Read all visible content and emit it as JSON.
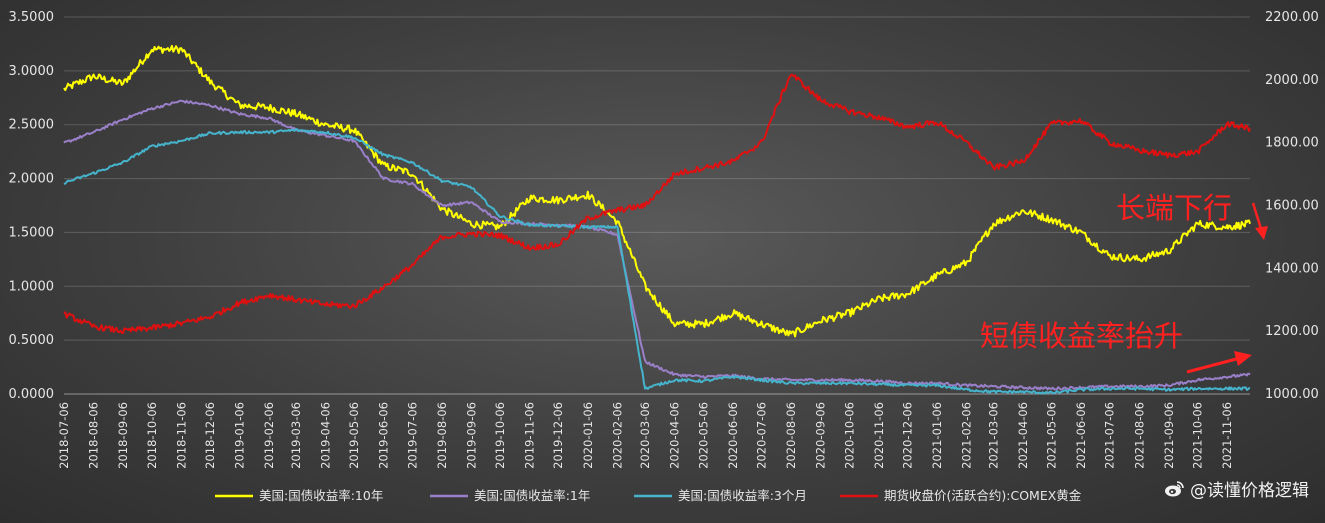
{
  "chart_data": {
    "type": "line",
    "x_start": "2018-07-06",
    "x_end": "2021-11-30",
    "xticks": [
      "2018-07-06",
      "2018-08-06",
      "2018-09-06",
      "2018-10-06",
      "2018-11-06",
      "2018-12-06",
      "2019-01-06",
      "2019-02-06",
      "2019-03-06",
      "2019-04-06",
      "2019-05-06",
      "2019-06-06",
      "2019-07-06",
      "2019-08-06",
      "2019-09-06",
      "2019-10-06",
      "2019-11-06",
      "2019-12-06",
      "2020-01-06",
      "2020-02-06",
      "2020-03-06",
      "2020-04-06",
      "2020-05-06",
      "2020-06-06",
      "2020-07-06",
      "2020-08-06",
      "2020-09-06",
      "2020-10-06",
      "2020-11-06",
      "2020-12-06",
      "2021-01-06",
      "2021-02-06",
      "2021-03-06",
      "2021-04-06",
      "2021-05-06",
      "2021-06-06",
      "2021-07-06",
      "2021-08-06",
      "2021-09-06",
      "2021-10-06",
      "2021-11-06"
    ],
    "y_left": {
      "min": 0,
      "max": 3.5,
      "step": 0.5,
      "ticks": [
        "0.0000",
        "0.5000",
        "1.0000",
        "1.5000",
        "2.0000",
        "2.5000",
        "3.0000",
        "3.5000"
      ]
    },
    "y_right": {
      "min": 1000,
      "max": 2200,
      "step": 200,
      "ticks": [
        "1000.00",
        "1200.00",
        "1400.00",
        "1600.00",
        "1800.00",
        "2000.00",
        "2200.00"
      ]
    },
    "grid": true,
    "legend_position": "bottom",
    "series": [
      {
        "name": "美国:国债收益率:10年",
        "color": "#ffff00",
        "axis": "left",
        "points": [
          [
            "2018-07-06",
            2.83
          ],
          [
            "2018-08-06",
            2.95
          ],
          [
            "2018-09-06",
            2.88
          ],
          [
            "2018-10-06",
            3.2
          ],
          [
            "2018-11-06",
            3.2
          ],
          [
            "2018-12-06",
            2.9
          ],
          [
            "2019-01-06",
            2.68
          ],
          [
            "2019-02-06",
            2.66
          ],
          [
            "2019-03-06",
            2.6
          ],
          [
            "2019-04-06",
            2.5
          ],
          [
            "2019-05-06",
            2.45
          ],
          [
            "2019-06-06",
            2.12
          ],
          [
            "2019-07-06",
            2.05
          ],
          [
            "2019-08-06",
            1.72
          ],
          [
            "2019-09-06",
            1.58
          ],
          [
            "2019-10-06",
            1.55
          ],
          [
            "2019-11-06",
            1.82
          ],
          [
            "2019-12-06",
            1.8
          ],
          [
            "2020-01-06",
            1.85
          ],
          [
            "2020-02-06",
            1.6
          ],
          [
            "2020-03-06",
            1.0
          ],
          [
            "2020-04-06",
            0.65
          ],
          [
            "2020-05-06",
            0.65
          ],
          [
            "2020-06-06",
            0.75
          ],
          [
            "2020-07-06",
            0.65
          ],
          [
            "2020-08-06",
            0.55
          ],
          [
            "2020-09-06",
            0.68
          ],
          [
            "2020-10-06",
            0.75
          ],
          [
            "2020-11-06",
            0.88
          ],
          [
            "2020-12-06",
            0.93
          ],
          [
            "2021-01-06",
            1.1
          ],
          [
            "2021-02-06",
            1.22
          ],
          [
            "2021-03-06",
            1.58
          ],
          [
            "2021-04-06",
            1.7
          ],
          [
            "2021-05-06",
            1.62
          ],
          [
            "2021-06-06",
            1.5
          ],
          [
            "2021-07-06",
            1.28
          ],
          [
            "2021-08-06",
            1.25
          ],
          [
            "2021-09-06",
            1.33
          ],
          [
            "2021-10-06",
            1.58
          ],
          [
            "2021-11-06",
            1.55
          ],
          [
            "2021-11-30",
            1.58
          ]
        ]
      },
      {
        "name": "美国:国债收益率:1年",
        "color": "#9a7fc9",
        "axis": "left",
        "points": [
          [
            "2018-07-06",
            2.33
          ],
          [
            "2018-08-06",
            2.43
          ],
          [
            "2018-09-06",
            2.55
          ],
          [
            "2018-10-06",
            2.65
          ],
          [
            "2018-11-06",
            2.72
          ],
          [
            "2018-12-06",
            2.68
          ],
          [
            "2019-01-06",
            2.6
          ],
          [
            "2019-02-06",
            2.56
          ],
          [
            "2019-03-06",
            2.45
          ],
          [
            "2019-04-06",
            2.4
          ],
          [
            "2019-05-06",
            2.35
          ],
          [
            "2019-06-06",
            2.0
          ],
          [
            "2019-07-06",
            1.95
          ],
          [
            "2019-08-06",
            1.75
          ],
          [
            "2019-09-06",
            1.78
          ],
          [
            "2019-10-06",
            1.6
          ],
          [
            "2019-11-06",
            1.58
          ],
          [
            "2019-12-06",
            1.57
          ],
          [
            "2020-01-06",
            1.55
          ],
          [
            "2020-02-06",
            1.48
          ],
          [
            "2020-03-06",
            0.3
          ],
          [
            "2020-04-06",
            0.18
          ],
          [
            "2020-05-06",
            0.16
          ],
          [
            "2020-06-06",
            0.17
          ],
          [
            "2020-07-06",
            0.14
          ],
          [
            "2020-08-06",
            0.13
          ],
          [
            "2020-09-06",
            0.13
          ],
          [
            "2020-10-06",
            0.13
          ],
          [
            "2020-11-06",
            0.12
          ],
          [
            "2020-12-06",
            0.1
          ],
          [
            "2021-01-06",
            0.1
          ],
          [
            "2021-02-06",
            0.08
          ],
          [
            "2021-03-06",
            0.07
          ],
          [
            "2021-04-06",
            0.06
          ],
          [
            "2021-05-06",
            0.05
          ],
          [
            "2021-06-06",
            0.06
          ],
          [
            "2021-07-06",
            0.07
          ],
          [
            "2021-08-06",
            0.07
          ],
          [
            "2021-09-06",
            0.08
          ],
          [
            "2021-10-06",
            0.13
          ],
          [
            "2021-11-06",
            0.16
          ],
          [
            "2021-11-30",
            0.18
          ]
        ]
      },
      {
        "name": "美国:国债收益率:3个月",
        "color": "#45b4cc",
        "axis": "left",
        "points": [
          [
            "2018-07-06",
            1.96
          ],
          [
            "2018-08-06",
            2.05
          ],
          [
            "2018-09-06",
            2.15
          ],
          [
            "2018-10-06",
            2.3
          ],
          [
            "2018-11-06",
            2.35
          ],
          [
            "2018-12-06",
            2.42
          ],
          [
            "2019-01-06",
            2.43
          ],
          [
            "2019-02-06",
            2.43
          ],
          [
            "2019-03-06",
            2.45
          ],
          [
            "2019-04-06",
            2.43
          ],
          [
            "2019-05-06",
            2.38
          ],
          [
            "2019-06-06",
            2.22
          ],
          [
            "2019-07-06",
            2.15
          ],
          [
            "2019-08-06",
            1.98
          ],
          [
            "2019-09-06",
            1.92
          ],
          [
            "2019-10-06",
            1.65
          ],
          [
            "2019-11-06",
            1.57
          ],
          [
            "2019-12-06",
            1.56
          ],
          [
            "2020-01-06",
            1.55
          ],
          [
            "2020-02-06",
            1.55
          ],
          [
            "2020-03-06",
            0.05
          ],
          [
            "2020-04-06",
            0.13
          ],
          [
            "2020-05-06",
            0.12
          ],
          [
            "2020-06-06",
            0.16
          ],
          [
            "2020-07-06",
            0.13
          ],
          [
            "2020-08-06",
            0.1
          ],
          [
            "2020-09-06",
            0.1
          ],
          [
            "2020-10-06",
            0.1
          ],
          [
            "2020-11-06",
            0.09
          ],
          [
            "2020-12-06",
            0.08
          ],
          [
            "2021-01-06",
            0.08
          ],
          [
            "2021-02-06",
            0.04
          ],
          [
            "2021-03-06",
            0.02
          ],
          [
            "2021-04-06",
            0.02
          ],
          [
            "2021-05-06",
            0.01
          ],
          [
            "2021-06-06",
            0.04
          ],
          [
            "2021-07-06",
            0.05
          ],
          [
            "2021-08-06",
            0.05
          ],
          [
            "2021-09-06",
            0.04
          ],
          [
            "2021-10-06",
            0.05
          ],
          [
            "2021-11-06",
            0.05
          ],
          [
            "2021-11-30",
            0.05
          ]
        ]
      },
      {
        "name": "期货收盘价(活跃合约):COMEX黄金",
        "color": "#e01010",
        "axis": "right",
        "points": [
          [
            "2018-07-06",
            1255
          ],
          [
            "2018-08-06",
            1215
          ],
          [
            "2018-09-06",
            1200
          ],
          [
            "2018-10-06",
            1210
          ],
          [
            "2018-11-06",
            1225
          ],
          [
            "2018-12-06",
            1245
          ],
          [
            "2019-01-06",
            1290
          ],
          [
            "2019-02-06",
            1315
          ],
          [
            "2019-03-06",
            1300
          ],
          [
            "2019-04-06",
            1285
          ],
          [
            "2019-05-06",
            1280
          ],
          [
            "2019-06-06",
            1340
          ],
          [
            "2019-07-06",
            1410
          ],
          [
            "2019-08-06",
            1500
          ],
          [
            "2019-09-06",
            1510
          ],
          [
            "2019-10-06",
            1505
          ],
          [
            "2019-11-06",
            1465
          ],
          [
            "2019-12-06",
            1475
          ],
          [
            "2020-01-06",
            1560
          ],
          [
            "2020-02-06",
            1585
          ],
          [
            "2020-03-06",
            1600
          ],
          [
            "2020-04-06",
            1700
          ],
          [
            "2020-05-06",
            1720
          ],
          [
            "2020-06-06",
            1740
          ],
          [
            "2020-07-06",
            1800
          ],
          [
            "2020-08-06",
            2020
          ],
          [
            "2020-09-06",
            1935
          ],
          [
            "2020-10-06",
            1900
          ],
          [
            "2020-11-06",
            1880
          ],
          [
            "2020-12-06",
            1850
          ],
          [
            "2021-01-06",
            1865
          ],
          [
            "2021-02-06",
            1800
          ],
          [
            "2021-03-06",
            1720
          ],
          [
            "2021-04-06",
            1740
          ],
          [
            "2021-05-06",
            1860
          ],
          [
            "2021-06-06",
            1870
          ],
          [
            "2021-07-06",
            1800
          ],
          [
            "2021-08-06",
            1775
          ],
          [
            "2021-09-06",
            1760
          ],
          [
            "2021-10-06",
            1770
          ],
          [
            "2021-11-06",
            1860
          ],
          [
            "2021-11-30",
            1845
          ]
        ]
      }
    ],
    "annotations": [
      {
        "text": "长端下行",
        "color": "#ff2020"
      },
      {
        "text": "短债收益率抬升",
        "color": "#ff2020"
      }
    ]
  },
  "watermark": {
    "text": "@读懂价格逻辑",
    "icon": "weibo-logo-icon"
  }
}
